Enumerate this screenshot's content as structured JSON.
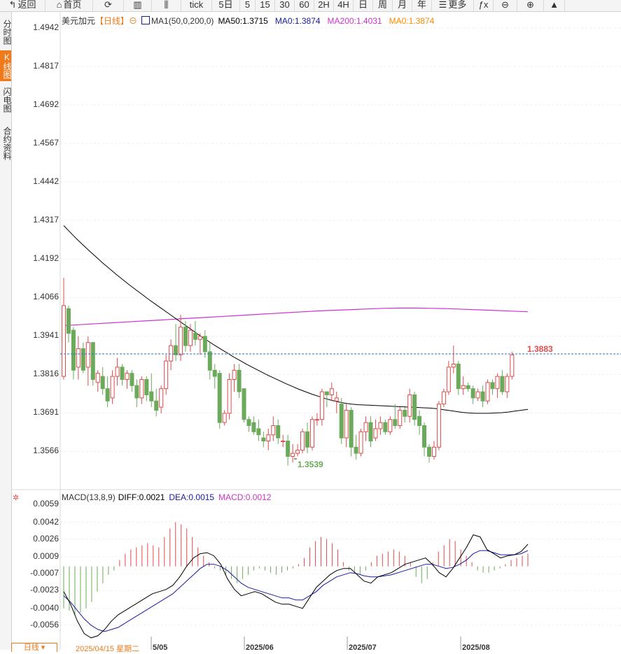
{
  "toolbar": {
    "items": [
      {
        "label": "返回",
        "icon": "back-arrow-icon"
      },
      {
        "label": "首页",
        "icon": "home-icon"
      },
      {
        "label": "",
        "icon": "refresh-icon"
      },
      {
        "label": "",
        "icon": "bar-indicator-icon"
      },
      {
        "label": "",
        "icon": "candlestick-icon"
      },
      {
        "label": "tick"
      },
      {
        "label": "5日"
      },
      {
        "label": "5"
      },
      {
        "label": "15"
      },
      {
        "label": "30"
      },
      {
        "label": "60"
      },
      {
        "label": "2H"
      },
      {
        "label": "4H"
      },
      {
        "label": "日"
      },
      {
        "label": "周"
      },
      {
        "label": "月"
      },
      {
        "label": "年"
      },
      {
        "label": "更多",
        "icon": "menu-icon"
      },
      {
        "label": "",
        "icon": "fx-formula-icon"
      },
      {
        "label": "",
        "icon": "zoom-out-icon"
      },
      {
        "label": "",
        "icon": "zoom-in-icon"
      },
      {
        "label": "",
        "icon": "triangle-up-icon"
      }
    ]
  },
  "sidebar": {
    "tabs": [
      {
        "label": "分时图",
        "active": false
      },
      {
        "label": "K线图",
        "active": true
      },
      {
        "label": "闪电图",
        "active": false
      },
      {
        "label": "合约资料",
        "active": false
      }
    ]
  },
  "colors": {
    "up": "#e04a4a",
    "down": "#6aaa5a",
    "ma50": "#000000",
    "ma200": "#cc33cc",
    "ma0": "#ff8800",
    "dea": "#1a1aa0",
    "macd": "#cc33cc",
    "accent": "#f07a1a"
  },
  "main_legend": {
    "symbol": "美元加元",
    "period": "【日线】",
    "indicator": "MA1(50,0,200,0)",
    "ma50": "MA50:1.3715",
    "ma0_first": "MA0:1.3874",
    "ma200": "MA200:1.4031",
    "ma0_second": "MA0:1.3874"
  },
  "macd_legend": {
    "name": "MACD(13,8,9)",
    "diff": "DIFF:0.0021",
    "dea": "DEA:0.0015",
    "macd": "MACD:0.0012"
  },
  "bottom_bar": {
    "period": "日线",
    "cursor_date": "2025/04/15 星期二"
  },
  "chart_data": [
    {
      "type": "candlestick",
      "title": "美元加元",
      "y_ticks": [
        "1.4942",
        "1.4817",
        "1.4692",
        "1.4567",
        "1.4442",
        "1.4317",
        "1.4192",
        "1.4066",
        "1.3941",
        "1.3816",
        "1.3691",
        "1.3566"
      ],
      "ylim": [
        1.342,
        1.5
      ],
      "x_labels": [
        "5/05",
        "2025/06",
        "2025/07",
        "2025/08"
      ],
      "annotations": {
        "high_label": "1.3883",
        "low_label": "1.3539"
      },
      "last_price": 1.3883,
      "ohlc": [
        [
          1.381,
          1.413,
          1.38,
          1.404
        ],
        [
          1.403,
          1.404,
          1.392,
          1.395
        ],
        [
          1.396,
          1.397,
          1.38,
          1.383
        ],
        [
          1.384,
          1.394,
          1.38,
          1.39
        ],
        [
          1.39,
          1.392,
          1.382,
          1.383
        ],
        [
          1.384,
          1.394,
          1.378,
          1.392
        ],
        [
          1.392,
          1.392,
          1.378,
          1.38
        ],
        [
          1.379,
          1.383,
          1.376,
          1.382
        ],
        [
          1.381,
          1.384,
          1.375,
          1.377
        ],
        [
          1.377,
          1.381,
          1.371,
          1.373
        ],
        [
          1.374,
          1.383,
          1.372,
          1.381
        ],
        [
          1.381,
          1.387,
          1.378,
          1.384
        ],
        [
          1.384,
          1.385,
          1.378,
          1.38
        ],
        [
          1.38,
          1.383,
          1.377,
          1.382
        ],
        [
          1.382,
          1.383,
          1.376,
          1.378
        ],
        [
          1.378,
          1.38,
          1.371,
          1.374
        ],
        [
          1.374,
          1.381,
          1.372,
          1.38
        ],
        [
          1.38,
          1.381,
          1.373,
          1.375
        ],
        [
          1.376,
          1.382,
          1.371,
          1.373
        ],
        [
          1.373,
          1.377,
          1.368,
          1.37
        ],
        [
          1.371,
          1.378,
          1.369,
          1.377
        ],
        [
          1.377,
          1.388,
          1.375,
          1.386
        ],
        [
          1.386,
          1.393,
          1.383,
          1.391
        ],
        [
          1.391,
          1.398,
          1.386,
          1.388
        ],
        [
          1.388,
          1.401,
          1.386,
          1.397
        ],
        [
          1.397,
          1.399,
          1.389,
          1.391
        ],
        [
          1.391,
          1.398,
          1.389,
          1.396
        ],
        [
          1.395,
          1.399,
          1.391,
          1.393
        ],
        [
          1.393,
          1.395,
          1.388,
          1.394
        ],
        [
          1.394,
          1.396,
          1.387,
          1.389
        ],
        [
          1.389,
          1.392,
          1.38,
          1.383
        ],
        [
          1.383,
          1.385,
          1.377,
          1.381
        ],
        [
          1.382,
          1.383,
          1.364,
          1.366
        ],
        [
          1.366,
          1.37,
          1.365,
          1.369
        ],
        [
          1.369,
          1.382,
          1.367,
          1.38
        ],
        [
          1.38,
          1.385,
          1.376,
          1.383
        ],
        [
          1.383,
          1.385,
          1.374,
          1.376
        ],
        [
          1.377,
          1.377,
          1.366,
          1.367
        ],
        [
          1.367,
          1.368,
          1.363,
          1.365
        ],
        [
          1.366,
          1.368,
          1.362,
          1.363
        ],
        [
          1.364,
          1.367,
          1.36,
          1.362
        ],
        [
          1.361,
          1.363,
          1.358,
          1.36
        ],
        [
          1.36,
          1.364,
          1.357,
          1.362
        ],
        [
          1.362,
          1.368,
          1.36,
          1.365
        ],
        [
          1.365,
          1.367,
          1.359,
          1.361
        ],
        [
          1.36,
          1.362,
          1.358,
          1.36
        ],
        [
          1.36,
          1.362,
          1.352,
          1.355
        ],
        [
          1.355,
          1.359,
          1.353,
          1.356
        ],
        [
          1.356,
          1.359,
          1.355,
          1.357
        ],
        [
          1.357,
          1.364,
          1.356,
          1.363
        ],
        [
          1.363,
          1.366,
          1.356,
          1.358
        ],
        [
          1.358,
          1.368,
          1.357,
          1.367
        ],
        [
          1.367,
          1.369,
          1.365,
          1.367
        ],
        [
          1.367,
          1.377,
          1.365,
          1.376
        ],
        [
          1.376,
          1.376,
          1.371,
          1.375
        ],
        [
          1.375,
          1.379,
          1.373,
          1.377
        ],
        [
          1.373,
          1.376,
          1.369,
          1.374
        ],
        [
          1.372,
          1.374,
          1.359,
          1.361
        ],
        [
          1.361,
          1.372,
          1.358,
          1.37
        ],
        [
          1.37,
          1.371,
          1.355,
          1.358
        ],
        [
          1.358,
          1.362,
          1.354,
          1.356
        ],
        [
          1.356,
          1.364,
          1.355,
          1.363
        ],
        [
          1.363,
          1.368,
          1.36,
          1.366
        ],
        [
          1.366,
          1.368,
          1.358,
          1.36
        ],
        [
          1.361,
          1.367,
          1.36,
          1.364
        ],
        [
          1.364,
          1.368,
          1.362,
          1.366
        ],
        [
          1.366,
          1.367,
          1.362,
          1.363
        ],
        [
          1.363,
          1.368,
          1.362,
          1.367
        ],
        [
          1.367,
          1.372,
          1.364,
          1.365
        ],
        [
          1.365,
          1.371,
          1.364,
          1.37
        ],
        [
          1.37,
          1.371,
          1.366,
          1.368
        ],
        [
          1.368,
          1.377,
          1.366,
          1.375
        ],
        [
          1.375,
          1.376,
          1.365,
          1.367
        ],
        [
          1.368,
          1.37,
          1.362,
          1.365
        ],
        [
          1.365,
          1.366,
          1.355,
          1.358
        ],
        [
          1.358,
          1.359,
          1.353,
          1.355
        ],
        [
          1.355,
          1.36,
          1.354,
          1.358
        ],
        [
          1.358,
          1.373,
          1.357,
          1.372
        ],
        [
          1.372,
          1.377,
          1.371,
          1.376
        ],
        [
          1.376,
          1.386,
          1.375,
          1.384
        ],
        [
          1.384,
          1.391,
          1.382,
          1.385
        ],
        [
          1.385,
          1.386,
          1.375,
          1.377
        ],
        [
          1.377,
          1.381,
          1.375,
          1.378
        ],
        [
          1.378,
          1.379,
          1.376,
          1.377
        ],
        [
          1.377,
          1.378,
          1.372,
          1.374
        ],
        [
          1.374,
          1.377,
          1.373,
          1.376
        ],
        [
          1.376,
          1.378,
          1.371,
          1.373
        ],
        [
          1.373,
          1.38,
          1.372,
          1.379
        ],
        [
          1.379,
          1.38,
          1.375,
          1.377
        ],
        [
          1.377,
          1.382,
          1.374,
          1.381
        ],
        [
          1.381,
          1.383,
          1.375,
          1.376
        ],
        [
          1.376,
          1.382,
          1.374,
          1.381
        ],
        [
          1.381,
          1.389,
          1.38,
          1.388
        ]
      ],
      "ma50": [
        1.43,
        1.4278,
        1.4256,
        1.4236,
        1.4216,
        1.4197,
        1.4178,
        1.416,
        1.4142,
        1.4125,
        1.4108,
        1.4092,
        1.4076,
        1.406,
        1.4045,
        1.403,
        1.4015,
        1.4,
        1.3985,
        1.397,
        1.3955,
        1.394,
        1.3926,
        1.3912,
        1.3899,
        1.3886,
        1.3873,
        1.3861,
        1.3849,
        1.3838,
        1.3827,
        1.3816,
        1.3806,
        1.3796,
        1.3786,
        1.3777,
        1.3768,
        1.376,
        1.3752,
        1.3745,
        1.3738,
        1.3732,
        1.3727,
        1.3723,
        1.372,
        1.3718,
        1.3717,
        1.3716,
        1.3715,
        1.3714,
        1.3713,
        1.3712,
        1.3711,
        1.371,
        1.3709,
        1.3708,
        1.3707,
        1.3705,
        1.3702,
        1.3699,
        1.3696,
        1.3693,
        1.3691,
        1.369,
        1.369,
        1.369,
        1.3691,
        1.3692,
        1.3694,
        1.3697,
        1.37,
        1.3703
      ],
      "ma200": [
        1.3975,
        1.3978,
        1.3981,
        1.3984,
        1.3987,
        1.399,
        1.3993,
        1.3996,
        1.3999,
        1.4002,
        1.4005,
        1.4008,
        1.4011,
        1.4014,
        1.4017,
        1.402,
        1.4023,
        1.4025,
        1.4027,
        1.4029,
        1.4031,
        1.4032,
        1.4032,
        1.4031,
        1.403,
        1.4028,
        1.4026,
        1.4024,
        1.4022,
        1.402
      ],
      "macd_panel": {
        "y_ticks": [
          "0.0059",
          "0.0042",
          "0.0026",
          "0.0009",
          "-0.0007",
          "-0.0023",
          "-0.0040",
          "-0.0056"
        ],
        "ylim": [
          -0.0072,
          0.006
        ],
        "diff": [
          -0.0024,
          -0.0036,
          -0.0052,
          -0.0064,
          -0.0068,
          -0.0066,
          -0.006,
          -0.0052,
          -0.0046,
          -0.0042,
          -0.0038,
          -0.0034,
          -0.003,
          -0.0026,
          -0.0024,
          -0.0022,
          -0.0018,
          -0.001,
          0.0,
          0.0008,
          0.0012,
          0.0013,
          0.001,
          0.0002,
          -0.0012,
          -0.0022,
          -0.0028,
          -0.0026,
          -0.0024,
          -0.0026,
          -0.003,
          -0.0034,
          -0.0036,
          -0.0036,
          -0.0038,
          -0.004,
          -0.003,
          -0.002,
          -0.0014,
          -0.0008,
          -0.0004,
          -0.0002,
          -0.0002,
          -0.0008,
          -0.0014,
          -0.0016,
          -0.001,
          -0.0008,
          -0.0006,
          -0.0002,
          0.0002,
          0.0004,
          0.0006,
          0.0008,
          0.0002,
          -0.0006,
          -0.001,
          -0.0002,
          0.0008,
          0.0018,
          0.003,
          0.0028,
          0.0016,
          0.0012,
          0.0008,
          0.001,
          0.0011,
          0.0014,
          0.0021
        ],
        "dea": [
          -0.0028,
          -0.0034,
          -0.0042,
          -0.005,
          -0.0056,
          -0.006,
          -0.0062,
          -0.006,
          -0.0058,
          -0.0054,
          -0.005,
          -0.0046,
          -0.0042,
          -0.0038,
          -0.0034,
          -0.003,
          -0.0026,
          -0.002,
          -0.0014,
          -0.0008,
          -0.0002,
          0.0002,
          0.0002,
          0.0,
          -0.0004,
          -0.001,
          -0.0016,
          -0.002,
          -0.0022,
          -0.0024,
          -0.0026,
          -0.0028,
          -0.003,
          -0.003,
          -0.0032,
          -0.0032,
          -0.0028,
          -0.0024,
          -0.0018,
          -0.0014,
          -0.001,
          -0.0008,
          -0.0006,
          -0.0007,
          -0.0009,
          -0.001,
          -0.001,
          -0.0009,
          -0.0008,
          -0.0006,
          -0.0004,
          -0.0002,
          0.0,
          0.0002,
          0.0002,
          0.0,
          -0.0002,
          -0.0001,
          0.0002,
          0.0006,
          0.0012,
          0.0015,
          0.0015,
          0.0013,
          0.0011,
          0.0011,
          0.0011,
          0.0012,
          0.0015
        ],
        "macd": [
          -0.004,
          -0.0042,
          -0.0046,
          -0.0044,
          -0.004,
          -0.0034,
          -0.0024,
          -0.0016,
          -0.0008,
          -0.0004,
          0.0006,
          0.0012,
          0.0016,
          0.0018,
          0.002,
          0.0022,
          0.002,
          0.0018,
          0.0028,
          0.0036,
          0.0042,
          0.004,
          0.0036,
          0.0028,
          0.0018,
          0.001,
          0.0004,
          -0.0002,
          -0.0004,
          -0.0008,
          -0.0012,
          -0.0016,
          -0.0012,
          -0.0008,
          -0.0004,
          -0.0002,
          -0.0004,
          -0.0006,
          -0.0008,
          -0.0006,
          -0.0004,
          -0.0002,
          0.0002,
          0.0008,
          0.0018,
          0.0024,
          0.0028,
          0.0026,
          0.0022,
          0.0016,
          0.0004,
          -0.0004,
          -0.0006,
          -0.0008,
          -0.0004,
          0.0004,
          0.001,
          0.0012,
          0.0014,
          0.0016,
          0.0014,
          0.001,
          0.0004,
          -0.001,
          -0.0016,
          -0.0012,
          0.0004,
          0.0014,
          0.002,
          0.0026,
          0.0024,
          0.0016,
          0.001,
          0.0004,
          -0.0004,
          -0.0006,
          -0.0006,
          -0.0004,
          -0.0002,
          0.0002,
          0.0006,
          0.0008,
          0.001,
          0.0012
        ]
      }
    }
  ]
}
